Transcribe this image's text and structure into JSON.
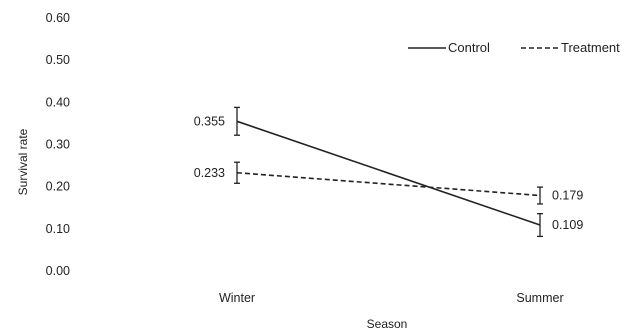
{
  "chart_data": {
    "type": "line",
    "xlabel": "Season",
    "ylabel": "Survival rate",
    "categories": [
      "Winter",
      "Summer"
    ],
    "ylim": [
      0,
      0.6
    ],
    "yticks": [
      "0.00",
      "0.10",
      "0.20",
      "0.30",
      "0.40",
      "0.50",
      "0.60"
    ],
    "grid": false,
    "legend_position": "top-right",
    "series": [
      {
        "name": "Control",
        "style": "solid",
        "color": "#222222",
        "values": [
          0.355,
          0.109
        ],
        "errors": [
          0.033,
          0.027
        ],
        "value_labels": [
          "0.355",
          "0.109"
        ]
      },
      {
        "name": "Treatment",
        "style": "dashed",
        "color": "#222222",
        "values": [
          0.233,
          0.179
        ],
        "errors": [
          0.025,
          0.02
        ],
        "value_labels": [
          "0.233",
          "0.179"
        ]
      }
    ]
  }
}
